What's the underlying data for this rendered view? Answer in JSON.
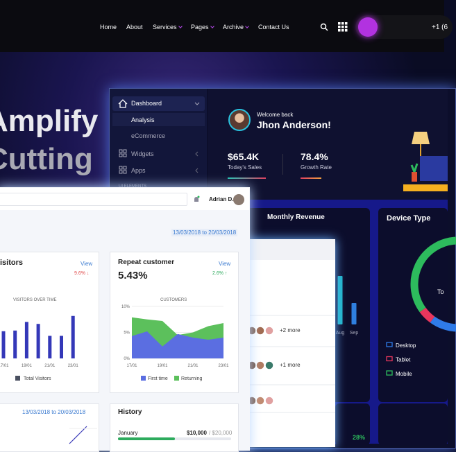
{
  "nav": {
    "links": [
      "Home",
      "About",
      "Services",
      "Pages",
      "Archive",
      "Contact Us"
    ],
    "phone": "+1 (6"
  },
  "hero": {
    "lines": [
      "Amplify",
      "Cutting"
    ]
  },
  "sidebar": {
    "items": [
      "Dashboard",
      "Analysis",
      "eCommerce",
      "Widgets",
      "Apps"
    ],
    "section": "UI ELEMENTS"
  },
  "welcome": {
    "greeting": "Welcome back",
    "name": "Jhon Anderson!",
    "stats": [
      {
        "value": "$65.4K",
        "label": "Today's Sales"
      },
      {
        "value": "78.4%",
        "label": "Growth Rate"
      }
    ]
  },
  "revenue": {
    "title": "Monthly Revenue",
    "chart": {
      "type": "bar",
      "categories": [
        "Aug",
        "Sep"
      ],
      "values": [
        70,
        31
      ],
      "ylim": [
        0,
        80
      ],
      "colors": [
        "#1fb6c9",
        "#2f7fe0"
      ]
    }
  },
  "device": {
    "title": "Device Type",
    "center": "To",
    "chart": {
      "type": "pie",
      "categories": [
        "Desktop",
        "Tablet",
        "Mobile"
      ],
      "values": [
        60,
        5,
        35
      ],
      "colors": [
        "#2f7be8",
        "#e8365d",
        "#2dbb5d"
      ]
    }
  },
  "footer_stat": "28%",
  "admin": {
    "user": "Adrian D.",
    "date_range": "13/03/2018 to 20/03/2018",
    "visitors": {
      "title": "isitors",
      "link": "View",
      "change": "9.6% ↓",
      "chart_title": "VISITORS OVER TIME",
      "legend": "Total Visitors",
      "chart": {
        "type": "bar",
        "categories": [
          "17/01",
          null,
          "19/01",
          null,
          "21/01",
          null,
          "23/01"
        ],
        "values": [
          41,
          42,
          55,
          52,
          34,
          34,
          64
        ],
        "ylim": [
          0,
          70
        ],
        "color": "#3438b8"
      }
    },
    "repeat": {
      "title": "Repeat customer",
      "value": "5.43%",
      "link": "View",
      "change": "2.6% ↑",
      "chart_title": "CUSTOMERS",
      "chart": {
        "type": "area",
        "categories": [
          "17/01",
          null,
          "19/01",
          null,
          "21/01",
          null,
          "23/01"
        ],
        "series": [
          {
            "name": "Returning",
            "color": "#5cc05c",
            "values": [
              7.9,
              7.5,
              7.2,
              4.5,
              5.0,
              6.2,
              6.8
            ]
          },
          {
            "name": "First time",
            "color": "#5b6ee1",
            "values": [
              4.3,
              5.2,
              2.3,
              4.7,
              4.0,
              3.6,
              4.0
            ]
          }
        ],
        "ylim": [
          0,
          10
        ],
        "yticks": [
          {
            "value": 0,
            "label": "0%"
          },
          {
            "value": 5,
            "label": "5%"
          },
          {
            "value": 10,
            "label": "10%"
          }
        ],
        "grid": true
      }
    },
    "date_range_2": "13/03/2018 to 20/03/2018",
    "history": {
      "title": "History",
      "month": "January",
      "amount": "$10,000",
      "total": "/ $20,000"
    }
  },
  "team": {
    "more": [
      "+2 more",
      "+1 more"
    ]
  }
}
